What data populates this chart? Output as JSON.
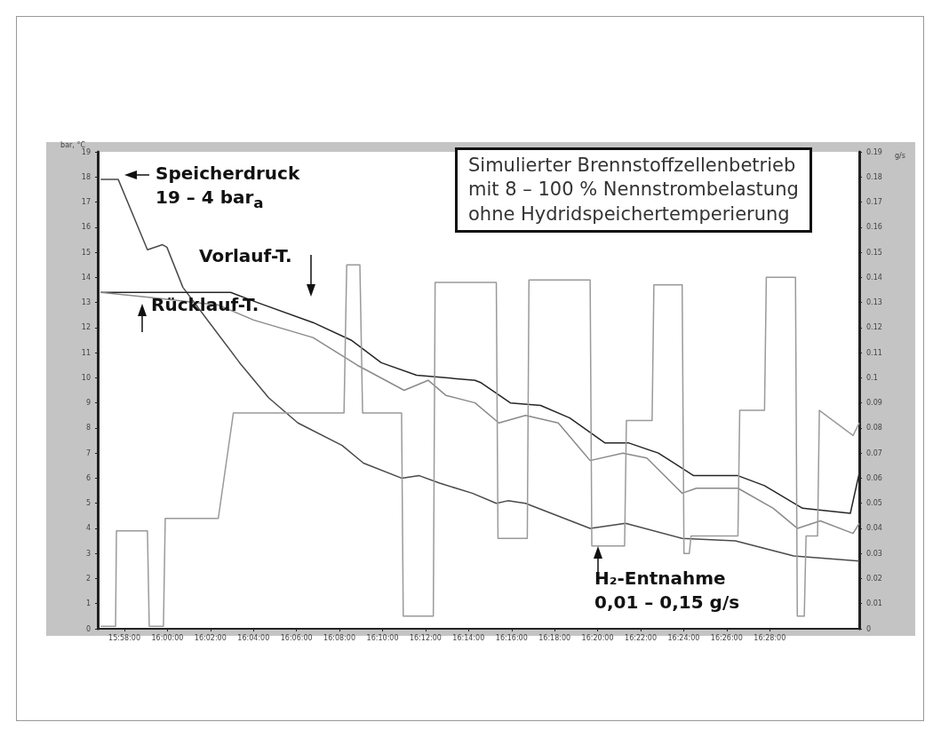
{
  "chart_data": {
    "type": "line",
    "ylabel": "bar, °C",
    "y2label": "g/s",
    "annotations": [
      "Simulierter Brennstoffzellenbetrieb\nmit 8 – 100 % Nennstrombelastung\nohne Hydridspeichertemperierung",
      "19 – 4 bar$_{a}$",
      "0,01 – 0,15 g/s"
    ],
    "xlim": [
      15.946,
      16.536
    ],
    "xticks": [
      {
        "value": 15.9667,
        "label": "15:58:00"
      },
      {
        "value": 16.0,
        "label": "16:00:00"
      },
      {
        "value": 16.0333,
        "label": "16:02:00"
      },
      {
        "value": 16.0667,
        "label": "16:04:00"
      },
      {
        "value": 16.1,
        "label": "16:06:00"
      },
      {
        "value": 16.1333,
        "label": "16:08:00"
      },
      {
        "value": 16.1667,
        "label": "16:10:00"
      },
      {
        "value": 16.2,
        "label": "16:12:00"
      },
      {
        "value": 16.2333,
        "label": "16:14:00"
      },
      {
        "value": 16.2667,
        "label": "16:16:00"
      },
      {
        "value": 16.3,
        "label": "16:18:00"
      },
      {
        "value": 16.3333,
        "label": "16:20:00"
      },
      {
        "value": 16.3667,
        "label": "16:22:00"
      },
      {
        "value": 16.4,
        "label": "16:24:00"
      },
      {
        "value": 16.4333,
        "label": "16:26:00"
      },
      {
        "value": 16.4667,
        "label": "16:28:00"
      }
    ],
    "ylim": [
      0,
      19
    ],
    "yticks": [
      0,
      1,
      2,
      3,
      4,
      5,
      6,
      7,
      8,
      9,
      10,
      11,
      12,
      13,
      14,
      15,
      16,
      17,
      18,
      19
    ],
    "y2lim": [
      0,
      0.19
    ],
    "y2ticks": [
      0,
      0.01,
      0.02,
      0.03,
      0.04,
      0.05,
      0.06,
      0.07,
      0.08,
      0.09,
      0.1,
      0.11,
      0.12,
      0.13,
      0.14,
      0.15,
      0.16,
      0.17,
      0.18,
      0.19
    ],
    "grid": false,
    "legend": false,
    "marker": "none",
    "line_style": "solid",
    "series": [
      {
        "name": "Speicherdruck",
        "color": "#4a4a4a",
        "x": [
          15.9482,
          15.9619,
          15.9845,
          15.9962,
          15.9996,
          16.012,
          16.0325,
          16.0559,
          16.0785,
          16.1011,
          16.1354,
          16.1519,
          16.1814,
          16.1951,
          16.2109,
          16.2362,
          16.2548,
          16.2637,
          16.2774,
          16.3275,
          16.3549,
          16.3988,
          16.44,
          16.4852,
          16.536
        ],
        "values": [
          17.9,
          17.9,
          15.1,
          15.3,
          15.2,
          13.6,
          12.2,
          10.6,
          9.2,
          8.2,
          7.3,
          6.6,
          6.0,
          6.1,
          5.8,
          5.4,
          5.0,
          5.1,
          5.0,
          4.0,
          4.2,
          3.6,
          3.5,
          2.9,
          2.7
        ]
      },
      {
        "name": "Vorlauf-T.",
        "color": "#262626",
        "x": [
          15.9482,
          16.049,
          16.0696,
          16.1128,
          16.1423,
          16.1656,
          16.193,
          16.2383,
          16.2431,
          16.2657,
          16.2891,
          16.3117,
          16.3391,
          16.3576,
          16.3803,
          16.4077,
          16.442,
          16.4626,
          16.4921,
          16.5291,
          16.536
        ],
        "values": [
          13.4,
          13.4,
          13.0,
          12.2,
          11.5,
          10.6,
          10.1,
          9.9,
          9.8,
          9.0,
          8.9,
          8.4,
          7.4,
          7.4,
          7.0,
          6.1,
          6.1,
          5.7,
          4.8,
          4.6,
          6.2
        ]
      },
      {
        "name": "Rücklauf-T.",
        "color": "#8a8a8a",
        "x": [
          15.9482,
          15.9873,
          16.0394,
          16.0668,
          16.1128,
          16.1471,
          16.1834,
          16.202,
          16.2157,
          16.2383,
          16.2568,
          16.2774,
          16.3028,
          16.3275,
          16.3528,
          16.3714,
          16.3988,
          16.4098,
          16.442,
          16.4694,
          16.488,
          16.5058,
          16.5312,
          16.536
        ],
        "values": [
          13.4,
          13.2,
          12.9,
          12.3,
          11.6,
          10.5,
          9.5,
          9.9,
          9.3,
          9.0,
          8.2,
          8.5,
          8.2,
          6.7,
          7.0,
          6.8,
          5.4,
          5.6,
          5.6,
          4.8,
          4.0,
          4.3,
          3.8,
          4.2
        ]
      },
      {
        "name": "H₂-Entnahme",
        "color": "#9a9a9a",
        "axis": "y2",
        "x": [
          15.9482,
          15.9598,
          15.9605,
          15.9845,
          15.9859,
          15.9969,
          15.9983,
          16.0394,
          16.0511,
          16.1368,
          16.1389,
          16.1491,
          16.1512,
          16.1814,
          16.1827,
          16.206,
          16.2074,
          16.2548,
          16.2561,
          16.2788,
          16.2801,
          16.3275,
          16.3288,
          16.3542,
          16.3556,
          16.3755,
          16.3769,
          16.3988,
          16.4002,
          16.4043,
          16.4057,
          16.442,
          16.4434,
          16.4626,
          16.464,
          16.4866,
          16.488,
          16.4934,
          16.4948,
          16.5037,
          16.5051,
          16.5312,
          16.536
        ],
        "values": [
          0.001,
          0.001,
          0.039,
          0.039,
          0.001,
          0.001,
          0.044,
          0.044,
          0.086,
          0.086,
          0.145,
          0.145,
          0.086,
          0.086,
          0.005,
          0.005,
          0.138,
          0.138,
          0.036,
          0.036,
          0.139,
          0.139,
          0.033,
          0.033,
          0.083,
          0.083,
          0.137,
          0.137,
          0.03,
          0.03,
          0.037,
          0.037,
          0.087,
          0.087,
          0.14,
          0.14,
          0.005,
          0.005,
          0.037,
          0.037,
          0.087,
          0.077,
          0.082
        ]
      }
    ]
  }
}
